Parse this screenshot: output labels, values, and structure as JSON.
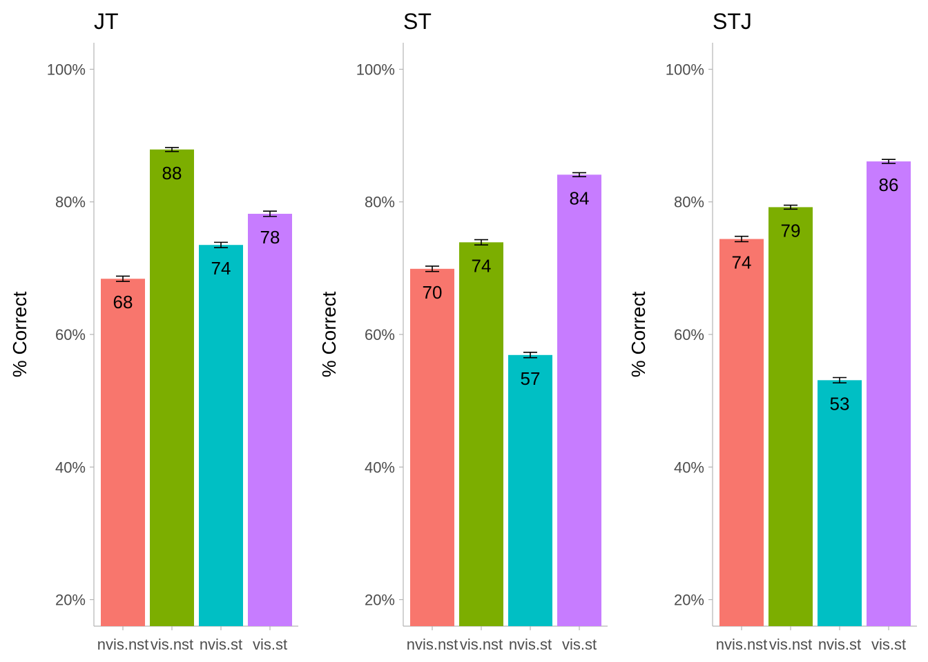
{
  "chart_data": [
    {
      "type": "bar",
      "title": "JT",
      "ylabel": "% Correct",
      "xlabel": "",
      "categories": [
        "nvis.nst",
        "vis.nst",
        "nvis.st",
        "vis.st"
      ],
      "values": [
        68.4,
        87.9,
        73.5,
        78.2
      ],
      "labels": [
        "68",
        "88",
        "74",
        "78"
      ],
      "error": [
        0.4,
        0.3,
        0.4,
        0.4
      ],
      "yticks": [
        "20%",
        "40%",
        "60%",
        "80%",
        "100%"
      ],
      "ylim": [
        16,
        104
      ],
      "colors": [
        "#F8766D",
        "#7CAE00",
        "#00BFC4",
        "#C77CFF"
      ]
    },
    {
      "type": "bar",
      "title": "ST",
      "ylabel": "% Correct",
      "xlabel": "",
      "categories": [
        "nvis.nst",
        "vis.nst",
        "nvis.st",
        "vis.st"
      ],
      "values": [
        69.9,
        73.9,
        56.9,
        84.1
      ],
      "labels": [
        "70",
        "74",
        "57",
        "84"
      ],
      "error": [
        0.4,
        0.4,
        0.4,
        0.3
      ],
      "yticks": [
        "20%",
        "40%",
        "60%",
        "80%",
        "100%"
      ],
      "ylim": [
        16,
        104
      ],
      "colors": [
        "#F8766D",
        "#7CAE00",
        "#00BFC4",
        "#C77CFF"
      ]
    },
    {
      "type": "bar",
      "title": "STJ",
      "ylabel": "% Correct",
      "xlabel": "",
      "categories": [
        "nvis.nst",
        "vis.nst",
        "nvis.st",
        "vis.st"
      ],
      "values": [
        74.4,
        79.2,
        53.1,
        86.1
      ],
      "labels": [
        "74",
        "79",
        "53",
        "86"
      ],
      "error": [
        0.4,
        0.3,
        0.4,
        0.3
      ],
      "yticks": [
        "20%",
        "40%",
        "60%",
        "80%",
        "100%"
      ],
      "ylim": [
        16,
        104
      ],
      "colors": [
        "#F8766D",
        "#7CAE00",
        "#00BFC4",
        "#C77CFF"
      ]
    }
  ]
}
